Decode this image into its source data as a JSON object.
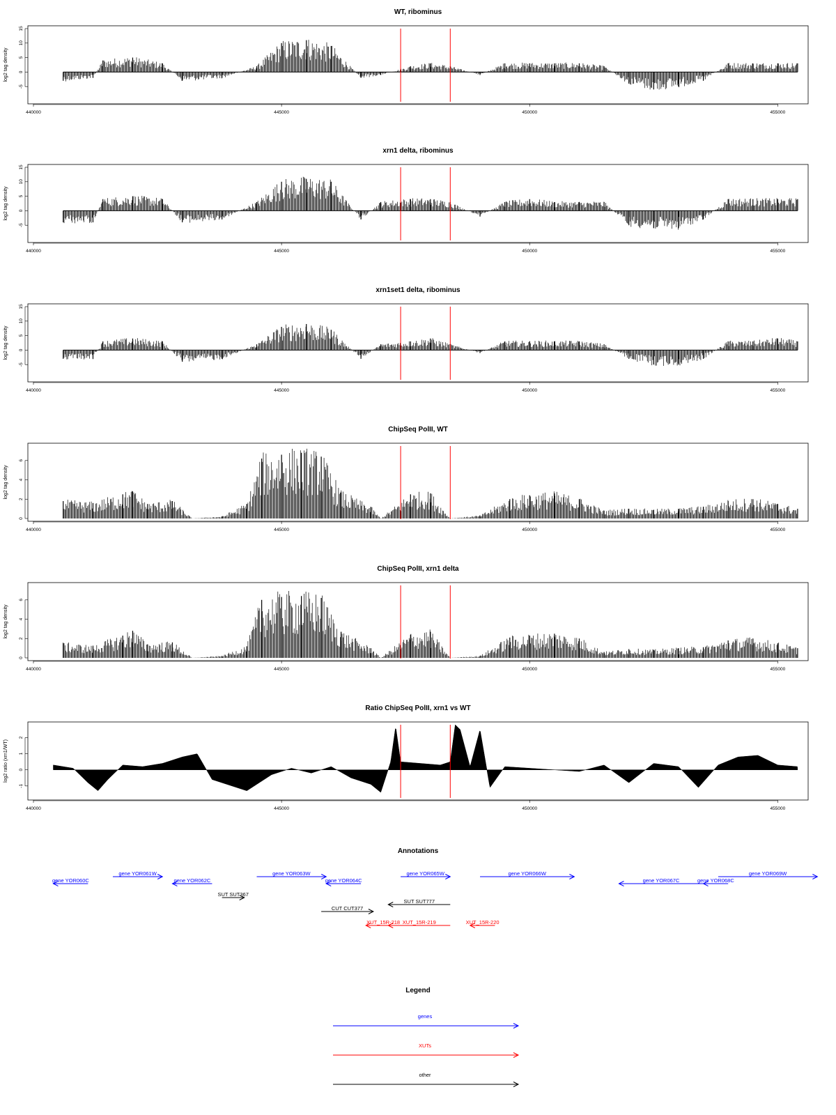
{
  "chart_data": [
    {
      "type": "bar",
      "title": "WT, ribominus",
      "ylabel": "log2 tag density",
      "xlim": [
        440000,
        455500
      ],
      "ylim": [
        -10,
        15
      ],
      "yticks": [
        -5,
        0,
        5,
        10,
        15
      ],
      "xticks": [
        440000,
        445000,
        450000,
        455000
      ],
      "baseline": 0,
      "series": [
        {
          "x": [
            440600,
            441200,
            441400,
            442000,
            442600,
            443000,
            443800,
            444500,
            445000,
            445500,
            446000,
            446600,
            447000,
            447600,
            448000,
            448400,
            449000,
            449500,
            450000,
            450500,
            451000,
            451500,
            452000,
            452500,
            453000,
            453500,
            454000,
            454500,
            455000,
            455400
          ],
          "values": [
            -3,
            -2,
            4,
            5,
            3,
            -3,
            -2,
            2,
            10,
            11,
            9,
            -2,
            -1,
            2,
            3,
            2,
            -1,
            3,
            3,
            3,
            3,
            2,
            -4,
            -6,
            -5,
            -3,
            3,
            3,
            3,
            3
          ]
        }
      ],
      "markers": [
        447400,
        448400
      ],
      "marker_color": "#ff0000"
    },
    {
      "type": "bar",
      "title": "xrn1 delta, ribominus",
      "ylabel": "log2 tag density",
      "xlim": [
        440000,
        455500
      ],
      "ylim": [
        -10,
        15
      ],
      "yticks": [
        -5,
        0,
        5,
        10,
        15
      ],
      "xticks": [
        440000,
        445000,
        450000,
        455000
      ],
      "baseline": 0,
      "series": [
        {
          "x": [
            440600,
            441200,
            441400,
            442000,
            442600,
            443000,
            443800,
            444500,
            445000,
            445500,
            446000,
            446600,
            447000,
            447600,
            448000,
            448400,
            449000,
            449500,
            450000,
            450500,
            451000,
            451500,
            452000,
            452500,
            453000,
            453500,
            454000,
            454500,
            455000,
            455400
          ],
          "values": [
            -4,
            -4,
            4,
            5,
            4,
            -4,
            -3,
            3,
            10,
            11,
            10,
            -3,
            3,
            4,
            4,
            3,
            -2,
            3,
            4,
            3,
            3,
            3,
            -5,
            -6,
            -6,
            -3,
            4,
            4,
            4,
            4
          ]
        }
      ],
      "markers": [
        447400,
        448400
      ],
      "marker_color": "#ff0000"
    },
    {
      "type": "bar",
      "title": "xrn1set1 delta, ribominus",
      "ylabel": "log2 tag density",
      "xlim": [
        440000,
        455500
      ],
      "ylim": [
        -10,
        15
      ],
      "yticks": [
        -5,
        0,
        5,
        10,
        15
      ],
      "xticks": [
        440000,
        445000,
        450000,
        455000
      ],
      "baseline": 0,
      "series": [
        {
          "x": [
            440600,
            441200,
            441400,
            442000,
            442600,
            443000,
            443800,
            444500,
            445000,
            445500,
            446000,
            446600,
            447000,
            447600,
            448000,
            448400,
            449000,
            449500,
            450000,
            450500,
            451000,
            451500,
            452000,
            452500,
            453000,
            453500,
            454000,
            454500,
            455000,
            455400
          ],
          "values": [
            -3,
            -3,
            3,
            4,
            3,
            -4,
            -3,
            2,
            8,
            9,
            7,
            -3,
            2,
            3,
            4,
            2,
            -1,
            3,
            3,
            3,
            3,
            2,
            -3,
            -5,
            -5,
            -3,
            3,
            3,
            4,
            3
          ]
        }
      ],
      "markers": [
        447400,
        448400
      ],
      "marker_color": "#ff0000"
    },
    {
      "type": "bar",
      "title": "ChipSeq PolII, WT",
      "ylabel": "log2 tag density",
      "xlim": [
        440000,
        455500
      ],
      "ylim": [
        0,
        7.5
      ],
      "yticks": [
        0,
        2,
        4,
        6
      ],
      "xticks": [
        440000,
        445000,
        450000,
        455000
      ],
      "baseline": 0,
      "series": [
        {
          "x": [
            440600,
            441200,
            441800,
            442000,
            442300,
            442800,
            443200,
            443800,
            444300,
            444600,
            445000,
            445400,
            445800,
            446200,
            446800,
            447000,
            447600,
            448000,
            448400,
            449000,
            449600,
            450000,
            450500,
            451000,
            451500,
            452000,
            452500,
            453000,
            453500,
            454000,
            454500,
            455000,
            455400
          ],
          "values": [
            1.8,
            1.6,
            2.5,
            2.8,
            1.5,
            1.8,
            0,
            0.2,
            1.5,
            6.2,
            6.6,
            6.8,
            6.4,
            2.7,
            1.2,
            0,
            2.5,
            2.6,
            0,
            0.3,
            2.0,
            2.4,
            2.6,
            2.0,
            0.8,
            1.0,
            0.9,
            1.0,
            1.2,
            1.8,
            2.0,
            1.5,
            1.0
          ]
        }
      ],
      "markers": [
        447400,
        448400
      ],
      "marker_color": "#ff0000"
    },
    {
      "type": "bar",
      "title": "ChipSeq PolII, xrn1 delta",
      "ylabel": "log2 tag density",
      "xlim": [
        440000,
        455500
      ],
      "ylim": [
        0,
        7.5
      ],
      "yticks": [
        0,
        2,
        4,
        6
      ],
      "xticks": [
        440000,
        445000,
        450000,
        455000
      ],
      "baseline": 0,
      "series": [
        {
          "x": [
            440600,
            441200,
            441800,
            442000,
            442300,
            442800,
            443200,
            443800,
            444300,
            444600,
            445000,
            445400,
            445800,
            446200,
            446800,
            447000,
            447600,
            448000,
            448400,
            449000,
            449600,
            450000,
            450500,
            451000,
            451500,
            452000,
            452500,
            453000,
            453500,
            454000,
            454500,
            455000,
            455400
          ],
          "values": [
            1.5,
            1.2,
            2.3,
            2.8,
            1.4,
            1.6,
            0,
            0.2,
            1.2,
            6.0,
            6.3,
            6.4,
            6.2,
            2.7,
            1.0,
            0,
            2.4,
            2.7,
            0,
            0.2,
            2.1,
            2.3,
            2.5,
            2.0,
            0.6,
            0.9,
            0.8,
            1.0,
            1.1,
            1.8,
            2.0,
            1.5,
            1.0
          ]
        }
      ],
      "markers": [
        447400,
        448400
      ],
      "marker_color": "#ff0000"
    },
    {
      "type": "area",
      "title": "Ratio ChipSeq PolII, xrn1 vs WT",
      "ylabel": "log2 ratio (xrn1/WT)",
      "xlim": [
        440000,
        455500
      ],
      "ylim": [
        -1.7,
        2.8
      ],
      "yticks": [
        -1,
        0,
        1,
        2
      ],
      "xticks": [
        440000,
        445000,
        450000,
        455000
      ],
      "baseline": 0,
      "series": [
        {
          "x": [
            440400,
            440800,
            441100,
            441300,
            441500,
            441800,
            442200,
            442600,
            443000,
            443300,
            443600,
            444000,
            444300,
            444800,
            445200,
            445600,
            446000,
            446400,
            446800,
            447000,
            447200,
            447300,
            447400,
            447800,
            448200,
            448400,
            448500,
            448600,
            448800,
            449000,
            449200,
            449500,
            450000,
            450500,
            451000,
            451500,
            452000,
            452500,
            453000,
            453400,
            453800,
            454200,
            454600,
            455000,
            455400
          ],
          "values": [
            0.3,
            0.1,
            -0.8,
            -1.3,
            -0.6,
            0.3,
            0.2,
            0.4,
            0.8,
            1.0,
            -0.6,
            -1.0,
            -1.3,
            -0.3,
            0.1,
            -0.2,
            0.2,
            -0.5,
            -0.9,
            -1.4,
            0.5,
            2.7,
            0.5,
            0.4,
            0.3,
            0.5,
            2.8,
            2.5,
            0.2,
            2.5,
            -1.1,
            0.2,
            0.1,
            0.0,
            -0.1,
            0.3,
            -0.8,
            0.4,
            0.2,
            -1.1,
            0.3,
            0.8,
            0.9,
            0.3,
            0.2
          ]
        }
      ],
      "markers": [
        447400,
        448400
      ],
      "marker_color": "#ff0000"
    }
  ],
  "annotations": {
    "title": "Annotations",
    "xlim": [
      440000,
      455500
    ],
    "items": [
      {
        "label": "gene YOR060C",
        "start": 440400,
        "end": 441100,
        "strand": "-",
        "row": 1,
        "color": "#0000ff"
      },
      {
        "label": "gene YOR061W",
        "start": 441600,
        "end": 442600,
        "strand": "+",
        "row": 0,
        "color": "#0000ff"
      },
      {
        "label": "gene YOR062C",
        "start": 442800,
        "end": 443600,
        "strand": "-",
        "row": 1,
        "color": "#0000ff"
      },
      {
        "label": "gene YOR063W",
        "start": 444500,
        "end": 445900,
        "strand": "+",
        "row": 0,
        "color": "#0000ff"
      },
      {
        "label": "gene YOR064C",
        "start": 445900,
        "end": 446600,
        "strand": "-",
        "row": 1,
        "color": "#0000ff"
      },
      {
        "label": "gene YOR065W",
        "start": 447400,
        "end": 448400,
        "strand": "+",
        "row": 0,
        "color": "#0000ff"
      },
      {
        "label": "gene YOR066W",
        "start": 449000,
        "end": 450900,
        "strand": "+",
        "row": 0,
        "color": "#0000ff"
      },
      {
        "label": "gene YOR067C",
        "start": 451800,
        "end": 453500,
        "strand": "-",
        "row": 1,
        "color": "#0000ff"
      },
      {
        "label": "gene YOR068C",
        "start": 453500,
        "end": 454000,
        "strand": "-",
        "row": 1,
        "color": "#0000ff"
      },
      {
        "label": "gene YOR069W",
        "start": 453800,
        "end": 455800,
        "strand": "+",
        "row": 0,
        "color": "#0000ff"
      },
      {
        "label": "SUT SUT367",
        "start": 443800,
        "end": 444250,
        "strand": "+",
        "row": 3,
        "color": "#000000"
      },
      {
        "label": "CUT CUT377",
        "start": 445800,
        "end": 446850,
        "strand": "+",
        "row": 5,
        "color": "#000000"
      },
      {
        "label": "SUT SUT777",
        "start": 447150,
        "end": 448400,
        "strand": "-",
        "row": 4,
        "color": "#000000"
      },
      {
        "label": "XUT_15R-218",
        "start": 446700,
        "end": 447400,
        "strand": "-",
        "row": 7,
        "color": "#ff0000"
      },
      {
        "label": "XUT_15R-219",
        "start": 447150,
        "end": 448400,
        "strand": "-",
        "row": 7,
        "color": "#ff0000"
      },
      {
        "label": "XUT_15R-220",
        "start": 448800,
        "end": 449300,
        "strand": "-",
        "row": 7,
        "color": "#ff0000"
      }
    ]
  },
  "legend": {
    "title": "Legend",
    "items": [
      {
        "label": "genes",
        "color": "#0000ff"
      },
      {
        "label": "XUTs",
        "color": "#ff0000"
      },
      {
        "label": "other",
        "color": "#000000"
      }
    ]
  }
}
